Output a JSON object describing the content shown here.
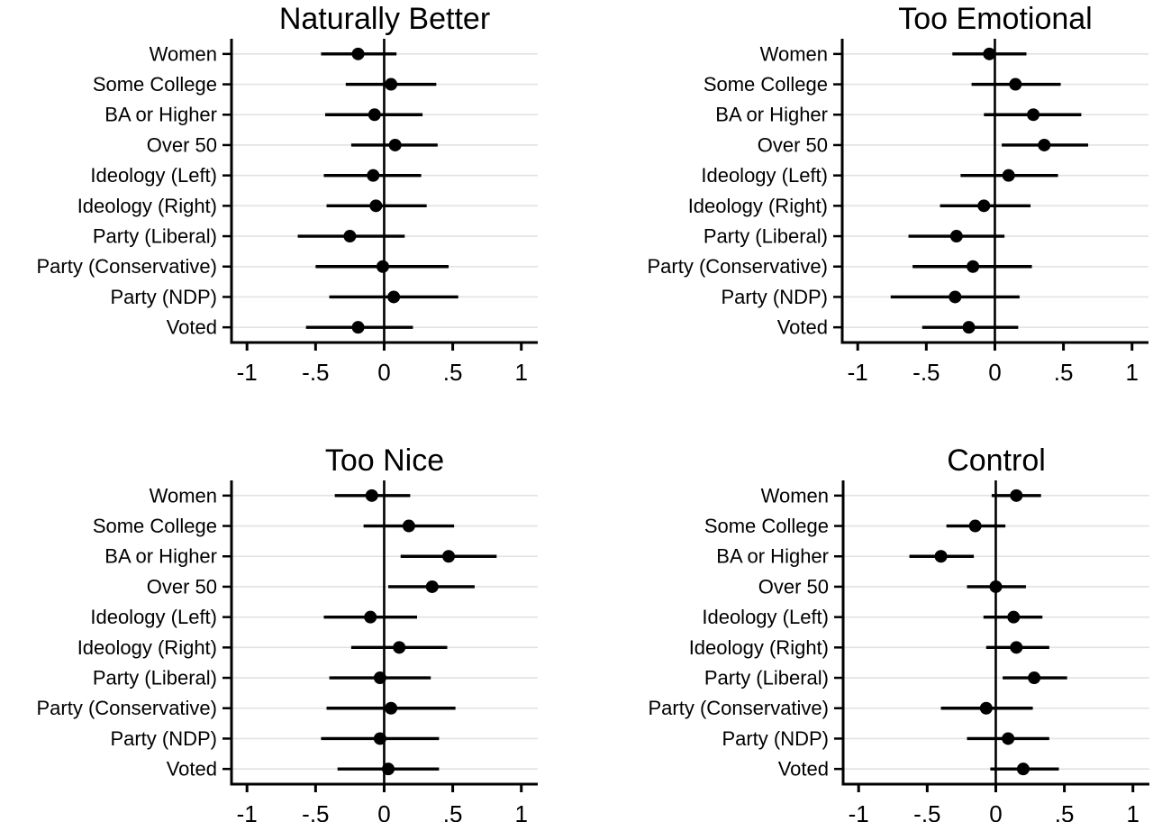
{
  "figure": {
    "kind": "coefficient-plot-grid",
    "background": "#ffffff",
    "rows": 2,
    "cols": 2
  },
  "colors": {
    "marker": "#000000",
    "ci_line": "#000000",
    "axis": "#000000",
    "zero_line": "#000000",
    "grid": "#e2e2e2",
    "text": "#000000"
  },
  "chart_data": [
    {
      "type": "scatter",
      "subtype": "coefficient-dot-and-ci",
      "title": "Naturally Better",
      "panel_position": "top-left",
      "categories": [
        "Women",
        "Some College",
        "BA or Higher",
        "Over 50",
        "Ideology (Left)",
        "Ideology (Right)",
        "Party (Liberal)",
        "Party (Conservative)",
        "Party (NDP)",
        "Voted"
      ],
      "series": [
        {
          "name": "estimate",
          "values": [
            -0.19,
            0.05,
            -0.07,
            0.08,
            -0.08,
            -0.06,
            -0.25,
            -0.01,
            0.07,
            -0.19
          ]
        },
        {
          "name": "ci_low",
          "values": [
            -0.46,
            -0.28,
            -0.43,
            -0.24,
            -0.44,
            -0.42,
            -0.63,
            -0.5,
            -0.4,
            -0.57
          ]
        },
        {
          "name": "ci_high",
          "values": [
            0.09,
            0.38,
            0.28,
            0.39,
            0.27,
            0.31,
            0.15,
            0.47,
            0.54,
            0.21
          ]
        }
      ],
      "xlim": [
        -1.113,
        1.12
      ],
      "xticks": [
        -1,
        -0.5,
        0,
        0.5,
        1
      ],
      "xtick_labels": [
        "-1",
        "-.5",
        "0",
        ".5",
        "1"
      ],
      "grid": "horizontal",
      "zero_line": true,
      "legend": "none"
    },
    {
      "type": "scatter",
      "subtype": "coefficient-dot-and-ci",
      "title": "Too Emotional",
      "panel_position": "top-right",
      "categories": [
        "Women",
        "Some College",
        "BA or Higher",
        "Over 50",
        "Ideology (Left)",
        "Ideology (Right)",
        "Party (Liberal)",
        "Party (Conservative)",
        "Party (NDP)",
        "Voted"
      ],
      "series": [
        {
          "name": "estimate",
          "values": [
            -0.04,
            0.15,
            0.28,
            0.36,
            0.1,
            -0.08,
            -0.28,
            -0.16,
            -0.29,
            -0.19
          ]
        },
        {
          "name": "ci_low",
          "values": [
            -0.31,
            -0.17,
            -0.08,
            0.05,
            -0.25,
            -0.4,
            -0.63,
            -0.6,
            -0.76,
            -0.53
          ]
        },
        {
          "name": "ci_high",
          "values": [
            0.23,
            0.48,
            0.63,
            0.68,
            0.46,
            0.26,
            0.07,
            0.27,
            0.18,
            0.17
          ]
        }
      ],
      "xlim": [
        -1.113,
        1.12
      ],
      "xticks": [
        -1,
        -0.5,
        0,
        0.5,
        1
      ],
      "xtick_labels": [
        "-1",
        "-.5",
        "0",
        ".5",
        "1"
      ],
      "grid": "horizontal",
      "zero_line": true,
      "legend": "none"
    },
    {
      "type": "scatter",
      "subtype": "coefficient-dot-and-ci",
      "title": "Too Nice",
      "panel_position": "bottom-left",
      "categories": [
        "Women",
        "Some College",
        "BA or Higher",
        "Over 50",
        "Ideology (Left)",
        "Ideology (Right)",
        "Party (Liberal)",
        "Party (Conservative)",
        "Party (NDP)",
        "Voted"
      ],
      "series": [
        {
          "name": "estimate",
          "values": [
            -0.09,
            0.18,
            0.47,
            0.35,
            -0.1,
            0.11,
            -0.03,
            0.05,
            -0.03,
            0.03
          ]
        },
        {
          "name": "ci_low",
          "values": [
            -0.36,
            -0.15,
            0.12,
            0.03,
            -0.44,
            -0.24,
            -0.4,
            -0.42,
            -0.46,
            -0.34
          ]
        },
        {
          "name": "ci_high",
          "values": [
            0.19,
            0.51,
            0.82,
            0.66,
            0.24,
            0.46,
            0.34,
            0.52,
            0.4,
            0.4
          ]
        }
      ],
      "xlim": [
        -1.113,
        1.12
      ],
      "xticks": [
        -1,
        -0.5,
        0,
        0.5,
        1
      ],
      "xtick_labels": [
        "-1",
        "-.5",
        "0",
        ".5",
        "1"
      ],
      "grid": "horizontal",
      "zero_line": true,
      "legend": "none"
    },
    {
      "type": "scatter",
      "subtype": "coefficient-dot-and-ci",
      "title": "Control",
      "panel_position": "bottom-right",
      "categories": [
        "Women",
        "Some College",
        "BA or Higher",
        "Over 50",
        "Ideology (Left)",
        "Ideology (Right)",
        "Party (Liberal)",
        "Party (Conservative)",
        "Party (NDP)",
        "Voted"
      ],
      "series": [
        {
          "name": "estimate",
          "values": [
            0.15,
            -0.15,
            -0.4,
            0.0,
            0.13,
            0.15,
            0.28,
            -0.07,
            0.09,
            0.2
          ]
        },
        {
          "name": "ci_low",
          "values": [
            -0.03,
            -0.36,
            -0.63,
            -0.21,
            -0.09,
            -0.07,
            0.05,
            -0.4,
            -0.21,
            -0.04
          ]
        },
        {
          "name": "ci_high",
          "values": [
            0.33,
            0.07,
            -0.16,
            0.22,
            0.34,
            0.39,
            0.52,
            0.27,
            0.39,
            0.46
          ]
        }
      ],
      "xlim": [
        -1.113,
        1.12
      ],
      "xticks": [
        -1,
        -0.5,
        0,
        0.5,
        1
      ],
      "xtick_labels": [
        "-1",
        "-.5",
        "0",
        ".5",
        "1"
      ],
      "grid": "horizontal",
      "zero_line": true,
      "legend": "none"
    }
  ]
}
